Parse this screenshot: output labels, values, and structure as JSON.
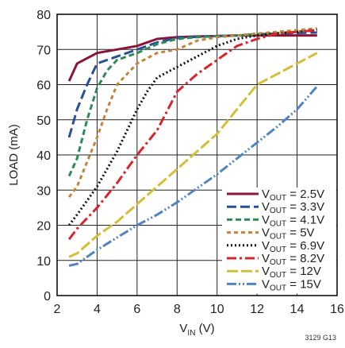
{
  "chart_data": {
    "type": "line",
    "xlabel": {
      "main": "V",
      "sub": "IN",
      "unit": " (V)"
    },
    "ylabel": "LOAD (mA)",
    "xlim": [
      2,
      16
    ],
    "ylim": [
      0,
      80
    ],
    "xticks": [
      2,
      4,
      6,
      8,
      10,
      12,
      14,
      16
    ],
    "yticks": [
      0,
      10,
      20,
      30,
      40,
      50,
      60,
      70,
      80
    ],
    "grid": true,
    "legend_position": "bottom-right",
    "figure_id": "3129 G13",
    "series": [
      {
        "name": "V_OUT = 2.5V",
        "legend": {
          "pre": "V",
          "sub": "OUT",
          "post": " = 2.5V"
        },
        "color": "#8B1538",
        "dash": "",
        "x": [
          2.6,
          3.0,
          4.0,
          5.0,
          6.0,
          7.0,
          8.0,
          9.0,
          10.0,
          11.0,
          12.0,
          13.0,
          14.0,
          15.0
        ],
        "y": [
          61,
          66,
          69,
          70,
          71,
          73,
          73.5,
          73.7,
          73.8,
          74,
          74,
          74,
          74,
          74
        ]
      },
      {
        "name": "V_OUT = 3.3V",
        "legend": {
          "pre": "V",
          "sub": "OUT",
          "post": " = 3.3V"
        },
        "color": "#2A4F96",
        "dash": "12,5",
        "x": [
          2.6,
          3.0,
          3.5,
          4.0,
          5.0,
          6.0,
          7.0,
          8.0,
          9.0,
          10.0,
          11.0,
          12.0,
          13.0,
          14.0,
          15.0
        ],
        "y": [
          45,
          53,
          60,
          66,
          68,
          70,
          72,
          73.3,
          73.6,
          73.8,
          74,
          74.3,
          74.5,
          74.7,
          74.8
        ]
      },
      {
        "name": "V_OUT = 4.1V",
        "legend": {
          "pre": "V",
          "sub": "OUT",
          "post": " = 4.1V"
        },
        "color": "#2E8B57",
        "dash": "7,4",
        "x": [
          2.6,
          3.0,
          3.5,
          4.0,
          4.5,
          5.0,
          6.0,
          7.0,
          8.0,
          9.0,
          10.0,
          11.0,
          12.0,
          13.0,
          14.0,
          15.0
        ],
        "y": [
          34,
          39,
          50,
          59,
          64,
          67,
          69,
          71.5,
          73,
          73.5,
          73.8,
          74,
          74.3,
          74.7,
          75,
          75.5
        ]
      },
      {
        "name": "V_OUT = 5V",
        "legend": {
          "pre": "V",
          "sub": "OUT",
          "post": " = 5V"
        },
        "color": "#C8823C",
        "dash": "5,4",
        "x": [
          2.6,
          3.0,
          3.5,
          4.0,
          4.5,
          5.0,
          6.0,
          7.0,
          8.0,
          9.0,
          10.0,
          11.0,
          12.0,
          13.0,
          14.0,
          15.0
        ],
        "y": [
          28,
          31,
          38,
          45,
          53,
          60,
          66,
          69,
          70,
          72.5,
          73.5,
          74,
          74.5,
          75,
          75.5,
          76
        ]
      },
      {
        "name": "V_OUT = 6.9V",
        "legend": {
          "pre": "V",
          "sub": "OUT",
          "post": " = 6.9V"
        },
        "color": "#111111",
        "dash": "2,3",
        "x": [
          2.6,
          3.0,
          4.0,
          5.0,
          5.5,
          6.0,
          6.5,
          7.0,
          8.0,
          9.0,
          10.0,
          11.0,
          12.0,
          13.0,
          14.0,
          15.0
        ],
        "y": [
          20,
          23,
          31,
          41,
          47,
          53,
          58,
          62,
          65,
          68,
          71,
          73,
          74,
          74.5,
          75,
          75.5
        ]
      },
      {
        "name": "V_OUT = 8.2V",
        "legend": {
          "pre": "V",
          "sub": "OUT",
          "post": " = 8.2V"
        },
        "color": "#D9242B",
        "dash": "12,4,3,4",
        "x": [
          2.6,
          3.0,
          4.0,
          5.0,
          6.0,
          7.0,
          8.0,
          9.0,
          10.0,
          11.0,
          12.0,
          13.0,
          14.0,
          15.0
        ],
        "y": [
          16,
          19,
          25,
          32,
          40,
          47,
          58,
          63,
          67,
          71,
          73,
          74.5,
          75,
          75.5
        ]
      },
      {
        "name": "V_OUT = 12V",
        "legend": {
          "pre": "V",
          "sub": "OUT",
          "post": " = 12V"
        },
        "color": "#D4BE3A",
        "dash": "14,4",
        "x": [
          2.6,
          3.0,
          4.0,
          5.0,
          6.0,
          7.0,
          8.0,
          9.0,
          10.0,
          11.0,
          12.0,
          13.0,
          14.0,
          15.0
        ],
        "y": [
          11,
          12,
          17,
          21,
          26,
          31,
          36,
          41,
          46,
          53,
          60,
          63,
          66,
          69
        ]
      },
      {
        "name": "V_OUT = 15V",
        "legend": {
          "pre": "V",
          "sub": "OUT",
          "post": " = 15V"
        },
        "color": "#4F84C4",
        "dash": "12,3,2,3,2,3",
        "x": [
          2.6,
          3.0,
          4.0,
          5.0,
          6.0,
          7.0,
          8.0,
          9.0,
          10.0,
          11.0,
          12.0,
          13.0,
          14.0,
          15.0
        ],
        "y": [
          8.5,
          9,
          13,
          16.5,
          20,
          23,
          26.5,
          30.5,
          34.5,
          39,
          43.5,
          48,
          53,
          59.5
        ]
      }
    ]
  }
}
